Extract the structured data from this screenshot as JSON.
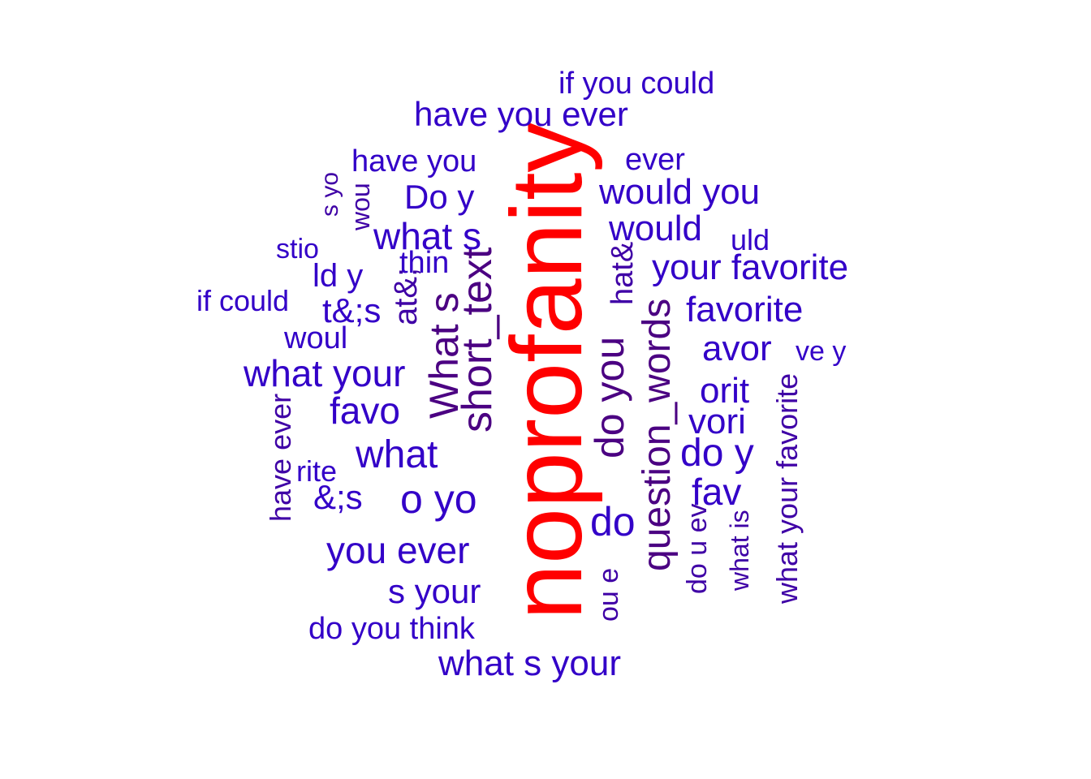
{
  "colors": {
    "background": "#ffffff",
    "top_term": "#ff0000",
    "very_high": "#4b0082",
    "high": "#3f00a6",
    "regular": "#3300c8"
  },
  "words": [
    {
      "id": "noprofanity",
      "text": "noprofanity",
      "color": "top_term"
    },
    {
      "id": "short-text",
      "text": "short_text",
      "color": "very_high"
    },
    {
      "id": "question-words",
      "text": "question_words",
      "color": "very_high"
    },
    {
      "id": "whats-vertical",
      "text": "What s",
      "color": "very_high"
    },
    {
      "id": "do-you-vertical",
      "text": "do you",
      "color": "very_high"
    },
    {
      "id": "at-amp",
      "text": "at&;",
      "color": "high"
    },
    {
      "id": "hat-amp",
      "text": "hat&",
      "color": "high"
    },
    {
      "id": "what-your-favorite-vertical",
      "text": "what your favorite",
      "color": "high"
    },
    {
      "id": "have-ever-vertical",
      "text": "have ever",
      "color": "high"
    },
    {
      "id": "do-u-ev",
      "text": "do u ev",
      "color": "high"
    },
    {
      "id": "what-is",
      "text": "what is",
      "color": "high"
    },
    {
      "id": "ou-e",
      "text": "ou e",
      "color": "high"
    },
    {
      "id": "s-yo-vertical",
      "text": "s yo",
      "color": "high"
    },
    {
      "id": "wou-vertical",
      "text": "wou",
      "color": "high"
    },
    {
      "id": "if-you-could",
      "text": "if you could",
      "color": "regular"
    },
    {
      "id": "have-you-ever",
      "text": "have you ever",
      "color": "regular"
    },
    {
      "id": "have-you",
      "text": "have you",
      "color": "regular"
    },
    {
      "id": "ever",
      "text": "ever",
      "color": "regular"
    },
    {
      "id": "would-you",
      "text": "would you",
      "color": "regular"
    },
    {
      "id": "do-y-top",
      "text": "Do y",
      "color": "regular"
    },
    {
      "id": "what-s",
      "text": "what s",
      "color": "regular"
    },
    {
      "id": "would",
      "text": "would",
      "color": "regular"
    },
    {
      "id": "uld",
      "text": "uld",
      "color": "regular"
    },
    {
      "id": "stio",
      "text": "stio",
      "color": "regular"
    },
    {
      "id": "thin",
      "text": "thin",
      "color": "regular"
    },
    {
      "id": "your-favorite",
      "text": "your favorite",
      "color": "regular"
    },
    {
      "id": "ld-y",
      "text": "ld y",
      "color": "regular"
    },
    {
      "id": "if-could",
      "text": "if could",
      "color": "regular"
    },
    {
      "id": "t-amp-s",
      "text": "t&;s",
      "color": "regular"
    },
    {
      "id": "favorite",
      "text": "favorite",
      "color": "regular"
    },
    {
      "id": "woul",
      "text": "woul",
      "color": "regular"
    },
    {
      "id": "avor",
      "text": "avor",
      "color": "regular"
    },
    {
      "id": "ve-y",
      "text": "ve y",
      "color": "regular"
    },
    {
      "id": "what-your",
      "text": "what your",
      "color": "regular"
    },
    {
      "id": "orit",
      "text": "orit",
      "color": "regular"
    },
    {
      "id": "favo",
      "text": "favo",
      "color": "regular"
    },
    {
      "id": "vori",
      "text": "vori",
      "color": "regular"
    },
    {
      "id": "what",
      "text": "what",
      "color": "regular"
    },
    {
      "id": "do-y-mid",
      "text": "do y",
      "color": "regular"
    },
    {
      "id": "rite",
      "text": "rite",
      "color": "regular"
    },
    {
      "id": "amp-s",
      "text": "&;s",
      "color": "regular"
    },
    {
      "id": "fav",
      "text": "fav",
      "color": "regular"
    },
    {
      "id": "o-yo",
      "text": "o yo",
      "color": "regular"
    },
    {
      "id": "do",
      "text": "do",
      "color": "regular"
    },
    {
      "id": "you-ever",
      "text": "you ever",
      "color": "regular"
    },
    {
      "id": "s-your",
      "text": "s your",
      "color": "regular"
    },
    {
      "id": "do-you-think",
      "text": "do you think",
      "color": "regular"
    },
    {
      "id": "what-s-your",
      "text": "what s your",
      "color": "regular"
    }
  ]
}
